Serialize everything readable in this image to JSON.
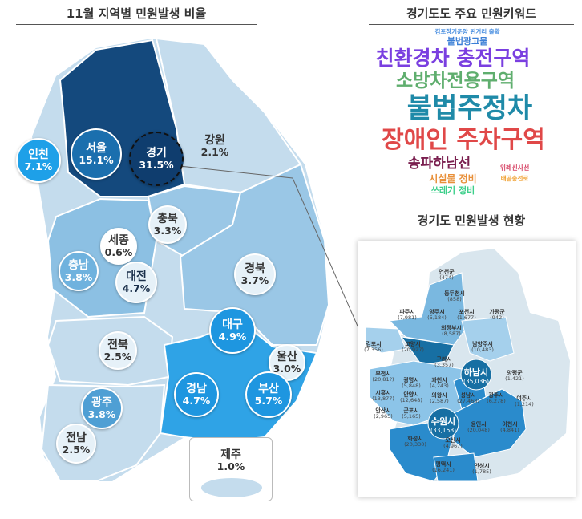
{
  "left": {
    "title": "11월 지역별 민원발생 비율",
    "regions": [
      {
        "name": "인천",
        "pct": "7.1%"
      },
      {
        "name": "서울",
        "pct": "15.1%"
      },
      {
        "name": "경기",
        "pct": "31.5%"
      },
      {
        "name": "강원",
        "pct": "2.1%"
      },
      {
        "name": "충북",
        "pct": "3.3%"
      },
      {
        "name": "세종",
        "pct": "0.6%"
      },
      {
        "name": "충남",
        "pct": "3.8%"
      },
      {
        "name": "대전",
        "pct": "4.7%"
      },
      {
        "name": "경북",
        "pct": "3.7%"
      },
      {
        "name": "대구",
        "pct": "4.9%"
      },
      {
        "name": "울산",
        "pct": "3.0%"
      },
      {
        "name": "전북",
        "pct": "2.5%"
      },
      {
        "name": "광주",
        "pct": "3.8%"
      },
      {
        "name": "경남",
        "pct": "4.7%"
      },
      {
        "name": "부산",
        "pct": "5.7%"
      },
      {
        "name": "전남",
        "pct": "2.5%"
      },
      {
        "name": "제주",
        "pct": "1.0%"
      }
    ]
  },
  "wordcloud": {
    "title": "경기도도 주요 민원키워드",
    "words": [
      {
        "text": "김포장기운양 펀거리 출확",
        "color": "#4a8fe0"
      },
      {
        "text": "불법광고물",
        "color": "#3b7fd6"
      },
      {
        "text": "친환경차 충전구역",
        "color": "#7a3fe0"
      },
      {
        "text": "소방차전용구역",
        "color": "#5fae6e"
      },
      {
        "text": "불법주정차",
        "color": "#1f8aa8"
      },
      {
        "text": "장애인 주차구역",
        "color": "#e04848"
      },
      {
        "text": "송파하남선",
        "color": "#7a1f4f"
      },
      {
        "text": "위례신사선",
        "color": "#d84a6a"
      },
      {
        "text": "시설물 정비",
        "color": "#e8903a"
      },
      {
        "text": "배곧송전로",
        "color": "#f0a030"
      },
      {
        "text": "쓰레기 정비",
        "color": "#3ccf8a"
      }
    ]
  },
  "gyeonggi": {
    "title": "경기도 민원발생 현황",
    "cities": [
      {
        "name": "연천군",
        "count": "(474)"
      },
      {
        "name": "동두천시",
        "count": "(858)"
      },
      {
        "name": "양주시",
        "count": "(5,184)"
      },
      {
        "name": "포천시",
        "count": "(1,677)"
      },
      {
        "name": "가평군",
        "count": "(942)"
      },
      {
        "name": "파주시",
        "count": "(7,981)"
      },
      {
        "name": "의정부시",
        "count": "(8,587)"
      },
      {
        "name": "김포시",
        "count": "(7,356)"
      },
      {
        "name": "고양시",
        "count": "(20,927)"
      },
      {
        "name": "남양주시",
        "count": "(10,483)"
      },
      {
        "name": "구리시",
        "count": "(3,357)"
      },
      {
        "name": "하남시",
        "count": "(35,036)"
      },
      {
        "name": "양평군",
        "count": "(1,421)"
      },
      {
        "name": "부천시",
        "count": "(20,81?)"
      },
      {
        "name": "광명시",
        "count": "(5,848)"
      },
      {
        "name": "과천시",
        "count": "(4,243)"
      },
      {
        "name": "시흥시",
        "count": "(13,877)"
      },
      {
        "name": "안양시",
        "count": "(12,648)"
      },
      {
        "name": "의왕시",
        "count": "(2,587)"
      },
      {
        "name": "성남시",
        "count": "(27,468)"
      },
      {
        "name": "광주시",
        "count": "(6,278)"
      },
      {
        "name": "여주시",
        "count": "(1,214)"
      },
      {
        "name": "군포시",
        "count": "(5,165)"
      },
      {
        "name": "안산시",
        "count": "(2,965)"
      },
      {
        "name": "수원시",
        "count": "(33,158)"
      },
      {
        "name": "용인시",
        "count": "(20,048)"
      },
      {
        "name": "이천시",
        "count": "(4,841)"
      },
      {
        "name": "화성시",
        "count": "(20,330)"
      },
      {
        "name": "오산시",
        "count": "(4,967)"
      },
      {
        "name": "평택시",
        "count": "(16,241)"
      },
      {
        "name": "안성시",
        "count": "(1,785)"
      }
    ]
  }
}
